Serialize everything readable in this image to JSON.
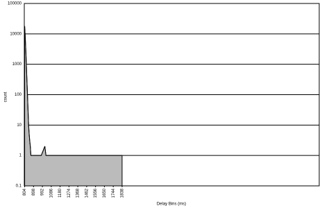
{
  "chart_data": {
    "type": "area",
    "x_label": "Delay Bins (ms)",
    "y_label": "count",
    "x": [
      804,
      810,
      816,
      822,
      828,
      834,
      840,
      846,
      852,
      858,
      864,
      870,
      900,
      940,
      980,
      1018,
      1030,
      1040,
      1838
    ],
    "values": [
      18000,
      8000,
      3000,
      1000,
      300,
      100,
      30,
      10,
      5,
      3,
      2,
      1,
      1,
      1,
      1,
      2,
      1,
      1,
      1
    ],
    "color": "#bbbbbb",
    "xlim": [
      800,
      3930
    ],
    "xticks": [
      804,
      898,
      992,
      1086,
      1180,
      1274,
      1368,
      1462,
      1556,
      1650,
      1744,
      1838
    ],
    "ylim": [
      0.1,
      100000
    ],
    "yticks": [
      0.1,
      1,
      10,
      100,
      1000,
      10000,
      100000
    ],
    "log_y": true,
    "grid": true
  }
}
